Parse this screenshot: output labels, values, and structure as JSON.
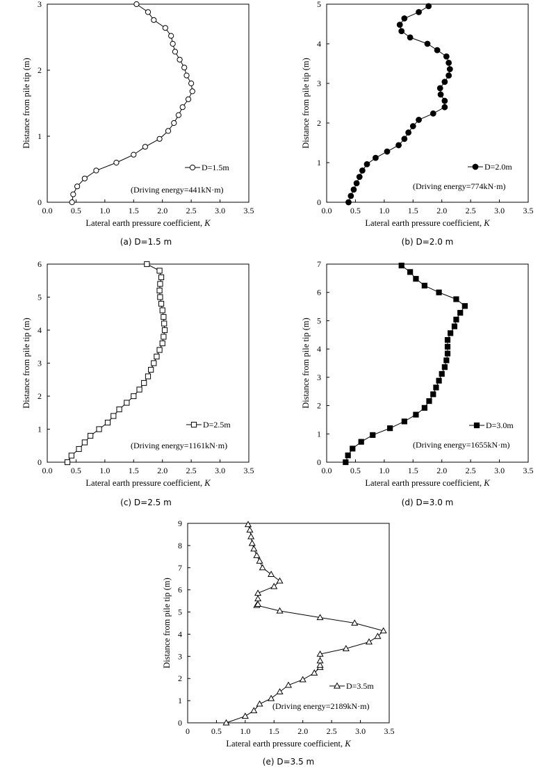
{
  "chart_data": [
    {
      "type": "line",
      "caption": "(a) D=1.5 m",
      "marker": "circle-open",
      "series": [
        {
          "name": "D=1.5m"
        }
      ],
      "annotation": "(Driving energy=441kN·m)",
      "xlabel_main": "Lateral earth pressure coefficient, ",
      "xlabel_var": "K",
      "ylabel": "Distance from pile tip (m)",
      "xlim": [
        0,
        3.5
      ],
      "ylim": [
        0,
        3
      ],
      "xticks": [
        "0.0",
        "0.5",
        "1.0",
        "1.5",
        "2.0",
        "2.5",
        "3.0",
        "3.5"
      ],
      "yticks": [
        "0",
        "1",
        "2",
        "3"
      ],
      "points": [
        [
          0.43,
          0.0
        ],
        [
          0.45,
          0.12
        ],
        [
          0.52,
          0.24
        ],
        [
          0.65,
          0.36
        ],
        [
          0.85,
          0.48
        ],
        [
          1.2,
          0.6
        ],
        [
          1.5,
          0.72
        ],
        [
          1.7,
          0.84
        ],
        [
          1.95,
          0.96
        ],
        [
          2.1,
          1.08
        ],
        [
          2.2,
          1.2
        ],
        [
          2.28,
          1.32
        ],
        [
          2.35,
          1.44
        ],
        [
          2.45,
          1.56
        ],
        [
          2.52,
          1.68
        ],
        [
          2.5,
          1.8
        ],
        [
          2.42,
          1.92
        ],
        [
          2.38,
          2.04
        ],
        [
          2.3,
          2.16
        ],
        [
          2.22,
          2.28
        ],
        [
          2.18,
          2.4
        ],
        [
          2.15,
          2.52
        ],
        [
          2.05,
          2.64
        ],
        [
          1.85,
          2.76
        ],
        [
          1.75,
          2.88
        ],
        [
          1.55,
          3.0
        ]
      ]
    },
    {
      "type": "line",
      "caption": "(b) D=2.0 m",
      "marker": "circle-filled",
      "series": [
        {
          "name": "D=2.0m"
        }
      ],
      "annotation": "(Driving energy=774kN·m)",
      "xlabel_main": "Lateral earth pressure coefficient, ",
      "xlabel_var": "K",
      "ylabel": "Distance from pile tip (m)",
      "xlim": [
        0,
        3.5
      ],
      "ylim": [
        0,
        5
      ],
      "xticks": [
        "0.0",
        "0.5",
        "1.0",
        "1.5",
        "2.0",
        "2.5",
        "3.0",
        "3.5"
      ],
      "yticks": [
        "0",
        "1",
        "2",
        "3",
        "4",
        "5"
      ],
      "points": [
        [
          0.38,
          0.0
        ],
        [
          0.42,
          0.16
        ],
        [
          0.47,
          0.32
        ],
        [
          0.52,
          0.48
        ],
        [
          0.57,
          0.64
        ],
        [
          0.62,
          0.8
        ],
        [
          0.7,
          0.96
        ],
        [
          0.85,
          1.12
        ],
        [
          1.05,
          1.28
        ],
        [
          1.25,
          1.44
        ],
        [
          1.35,
          1.6
        ],
        [
          1.42,
          1.76
        ],
        [
          1.5,
          1.92
        ],
        [
          1.6,
          2.08
        ],
        [
          1.85,
          2.24
        ],
        [
          2.05,
          2.4
        ],
        [
          2.05,
          2.56
        ],
        [
          1.98,
          2.72
        ],
        [
          1.97,
          2.88
        ],
        [
          2.05,
          3.04
        ],
        [
          2.12,
          3.2
        ],
        [
          2.14,
          3.36
        ],
        [
          2.12,
          3.52
        ],
        [
          2.08,
          3.68
        ],
        [
          1.92,
          3.84
        ],
        [
          1.75,
          4.0
        ],
        [
          1.45,
          4.16
        ],
        [
          1.3,
          4.32
        ],
        [
          1.27,
          4.48
        ],
        [
          1.35,
          4.64
        ],
        [
          1.6,
          4.8
        ],
        [
          1.77,
          4.95
        ]
      ]
    },
    {
      "type": "line",
      "caption": "(c) D=2.5 m",
      "marker": "square-open",
      "series": [
        {
          "name": "D=2.5m"
        }
      ],
      "annotation": "(Driving energy=1161kN·m)",
      "xlabel_main": "Lateral earth pressure coefficient, ",
      "xlabel_var": "K",
      "ylabel": "Distance from pile tip (m)",
      "xlim": [
        0,
        3.5
      ],
      "ylim": [
        0,
        6
      ],
      "xticks": [
        "0.0",
        "0.5",
        "1.0",
        "1.5",
        "2.0",
        "2.5",
        "3.0",
        "3.5"
      ],
      "yticks": [
        "0",
        "1",
        "2",
        "3",
        "4",
        "5",
        "6"
      ],
      "points": [
        [
          0.35,
          0.0
        ],
        [
          0.42,
          0.2
        ],
        [
          0.55,
          0.4
        ],
        [
          0.65,
          0.6
        ],
        [
          0.75,
          0.8
        ],
        [
          0.9,
          1.0
        ],
        [
          1.05,
          1.2
        ],
        [
          1.15,
          1.4
        ],
        [
          1.25,
          1.6
        ],
        [
          1.38,
          1.8
        ],
        [
          1.5,
          2.0
        ],
        [
          1.6,
          2.2
        ],
        [
          1.68,
          2.4
        ],
        [
          1.75,
          2.6
        ],
        [
          1.8,
          2.8
        ],
        [
          1.85,
          3.0
        ],
        [
          1.9,
          3.2
        ],
        [
          1.95,
          3.4
        ],
        [
          2.0,
          3.6
        ],
        [
          2.02,
          3.8
        ],
        [
          2.04,
          4.0
        ],
        [
          2.03,
          4.2
        ],
        [
          2.02,
          4.4
        ],
        [
          2.0,
          4.6
        ],
        [
          1.98,
          4.8
        ],
        [
          1.96,
          5.0
        ],
        [
          1.95,
          5.2
        ],
        [
          1.96,
          5.4
        ],
        [
          1.98,
          5.6
        ],
        [
          1.95,
          5.8
        ],
        [
          1.73,
          6.0
        ]
      ]
    },
    {
      "type": "line",
      "caption": "(d) D=3.0 m",
      "marker": "square-filled",
      "series": [
        {
          "name": "D=3.0m"
        }
      ],
      "annotation": "(Driving energy=1655kN·m)",
      "xlabel_main": "Lateral earth pressure coefficient, ",
      "xlabel_var": "K",
      "ylabel": "Distance from pile tip (m)",
      "xlim": [
        0,
        3.5
      ],
      "ylim": [
        0,
        7
      ],
      "xticks": [
        "0.0",
        "0.5",
        "1.0",
        "1.5",
        "2.0",
        "2.5",
        "3.0",
        "3.5"
      ],
      "yticks": [
        "0",
        "1",
        "2",
        "3",
        "4",
        "5",
        "6",
        "7"
      ],
      "points": [
        [
          0.33,
          0.0
        ],
        [
          0.37,
          0.24
        ],
        [
          0.45,
          0.48
        ],
        [
          0.6,
          0.72
        ],
        [
          0.8,
          0.96
        ],
        [
          1.1,
          1.2
        ],
        [
          1.35,
          1.44
        ],
        [
          1.55,
          1.68
        ],
        [
          1.7,
          1.92
        ],
        [
          1.78,
          2.16
        ],
        [
          1.85,
          2.4
        ],
        [
          1.9,
          2.64
        ],
        [
          1.95,
          2.88
        ],
        [
          2.0,
          3.12
        ],
        [
          2.05,
          3.36
        ],
        [
          2.08,
          3.6
        ],
        [
          2.1,
          3.84
        ],
        [
          2.1,
          4.08
        ],
        [
          2.1,
          4.32
        ],
        [
          2.15,
          4.56
        ],
        [
          2.22,
          4.8
        ],
        [
          2.25,
          5.04
        ],
        [
          2.32,
          5.28
        ],
        [
          2.4,
          5.52
        ],
        [
          2.25,
          5.76
        ],
        [
          1.95,
          6.0
        ],
        [
          1.7,
          6.24
        ],
        [
          1.55,
          6.48
        ],
        [
          1.45,
          6.72
        ],
        [
          1.3,
          6.95
        ]
      ]
    },
    {
      "type": "line",
      "caption": "(e) D=3.5 m",
      "marker": "triangle-open",
      "series": [
        {
          "name": "D=3.5m"
        }
      ],
      "annotation": "(Driving energy=2189kN·m)",
      "xlabel_main": "Lateral earth pressure coefficient, ",
      "xlabel_var": "K",
      "ylabel": "Distance from pile tip (m)",
      "xlim": [
        0,
        3.5
      ],
      "ylim": [
        0,
        9
      ],
      "xticks": [
        "0",
        "0.5",
        "1.0",
        "1.5",
        "2.0",
        "2.5",
        "3.0",
        "3.5"
      ],
      "yticks": [
        "0",
        "1",
        "2",
        "3",
        "4",
        "5",
        "6",
        "7",
        "8",
        "9"
      ],
      "points": [
        [
          0.67,
          0.0
        ],
        [
          1.0,
          0.3
        ],
        [
          1.15,
          0.55
        ],
        [
          1.25,
          0.85
        ],
        [
          1.45,
          1.1
        ],
        [
          1.6,
          1.4
        ],
        [
          1.75,
          1.7
        ],
        [
          2.0,
          1.95
        ],
        [
          2.2,
          2.25
        ],
        [
          2.3,
          2.5
        ],
        [
          2.3,
          2.6
        ],
        [
          2.3,
          2.8
        ],
        [
          2.3,
          3.1
        ],
        [
          2.75,
          3.35
        ],
        [
          3.15,
          3.65
        ],
        [
          3.3,
          3.9
        ],
        [
          3.4,
          4.15
        ],
        [
          2.9,
          4.5
        ],
        [
          2.3,
          4.75
        ],
        [
          1.6,
          5.05
        ],
        [
          1.2,
          5.3
        ],
        [
          1.22,
          5.35
        ],
        [
          1.22,
          5.6
        ],
        [
          1.22,
          5.85
        ],
        [
          1.5,
          6.15
        ],
        [
          1.6,
          6.4
        ],
        [
          1.45,
          6.7
        ],
        [
          1.3,
          7.0
        ],
        [
          1.25,
          7.3
        ],
        [
          1.2,
          7.55
        ],
        [
          1.15,
          7.85
        ],
        [
          1.12,
          8.1
        ],
        [
          1.1,
          8.4
        ],
        [
          1.08,
          8.7
        ],
        [
          1.05,
          8.95
        ]
      ]
    }
  ]
}
